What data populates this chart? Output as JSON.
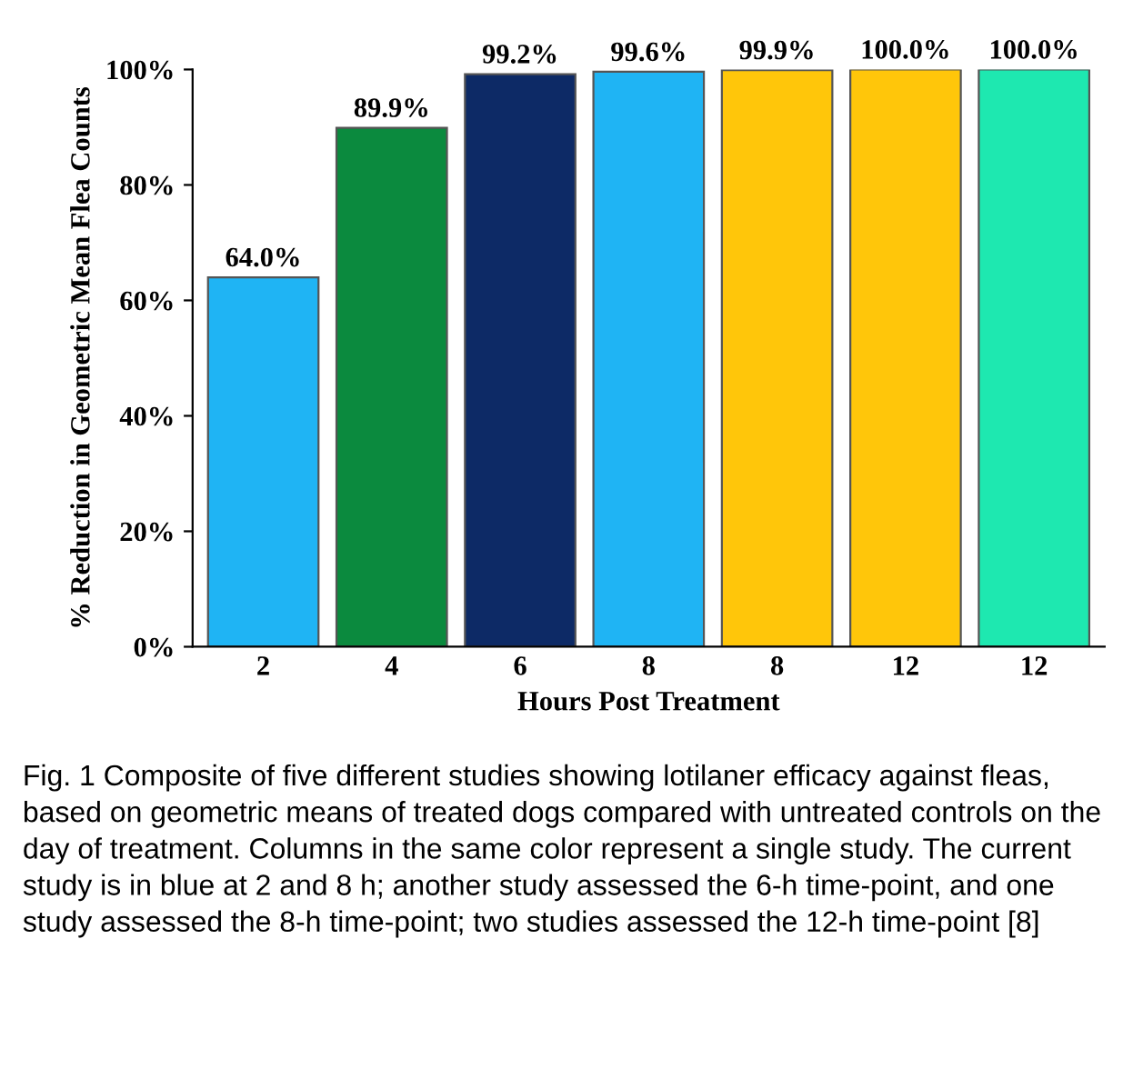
{
  "chart_data": {
    "type": "bar",
    "xlabel": "Hours Post Treatment",
    "ylabel": "% Reduction in Geometric Mean Flea Counts",
    "categories": [
      "2",
      "4",
      "6",
      "8",
      "8",
      "12",
      "12"
    ],
    "values": [
      64.0,
      89.9,
      99.2,
      99.6,
      99.9,
      100.0,
      100.0
    ],
    "value_labels": [
      "64.0%",
      "89.9%",
      "99.2%",
      "99.6%",
      "99.9%",
      "100.0%",
      "100.0%"
    ],
    "colors": [
      "#1fb4f4",
      "#0b8a3e",
      "#0d2a66",
      "#1fb4f4",
      "#ffc60a",
      "#ffc60a",
      "#1ee8b0"
    ],
    "ylim": [
      0,
      100
    ],
    "yticks": [
      {
        "value": 0,
        "label": "0%"
      },
      {
        "value": 20,
        "label": "20%"
      },
      {
        "value": 40,
        "label": "40%"
      },
      {
        "value": 60,
        "label": "60%"
      },
      {
        "value": 80,
        "label": "80%"
      },
      {
        "value": 100,
        "label": "100%"
      }
    ],
    "grid": false,
    "annotations": [
      "Fig. 1 Composite of five different studies showing lotilaner efficacy against fleas, based on geometric means of treated dogs compared with untreated controls on the day of treatment. Columns in the same color represent a single study. The current study is in blue at 2 and 8 h; another study assessed the 6-h time-point, and one study assessed the 8-h time-point; two studies assessed the 12-h time-point [8]"
    ]
  }
}
